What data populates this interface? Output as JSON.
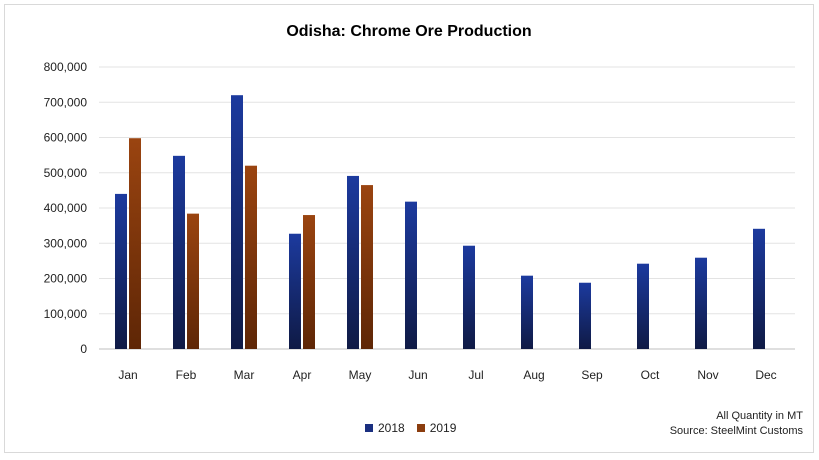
{
  "chart_data": {
    "type": "bar",
    "title": "Odisha: Chrome Ore Production",
    "xlabel": "",
    "ylabel": "",
    "categories": [
      "Jan",
      "Feb",
      "Mar",
      "Apr",
      "May",
      "Jun",
      "Jul",
      "Aug",
      "Sep",
      "Oct",
      "Nov",
      "Dec"
    ],
    "series": [
      {
        "name": "2018",
        "color": "#1a2f80",
        "values": [
          440000,
          548000,
          720000,
          327000,
          491000,
          418000,
          293000,
          208000,
          188000,
          242000,
          259000,
          341000
        ]
      },
      {
        "name": "2019",
        "color": "#8b3d0e",
        "values": [
          598000,
          384000,
          520000,
          380000,
          465000,
          null,
          null,
          null,
          null,
          null,
          null,
          null
        ]
      }
    ],
    "ylim": [
      0,
      800000
    ],
    "yticks": [
      0,
      100000,
      200000,
      300000,
      400000,
      500000,
      600000,
      700000,
      800000
    ],
    "ytick_labels": [
      "0",
      "100,000",
      "200,000",
      "300,000",
      "400,000",
      "500,000",
      "600,000",
      "700,000",
      "800,000"
    ],
    "grid": true,
    "legend_position": "bottom-center"
  },
  "notes": {
    "quantity": "All Quantity in MT",
    "source": "Source: SteelMint Customs"
  }
}
